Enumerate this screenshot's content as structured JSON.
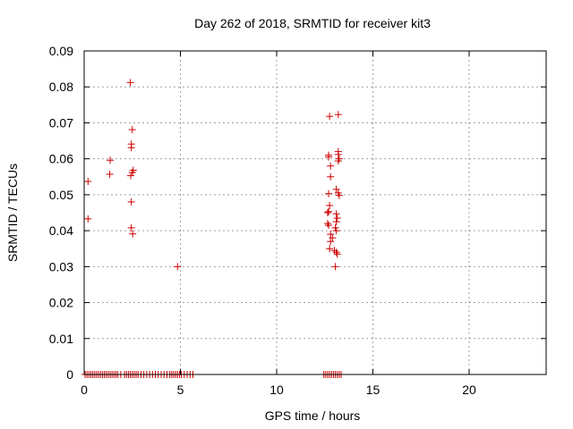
{
  "chart_data": {
    "type": "scatter",
    "title": "Day 262 of 2018, SRMTID for receiver kit3",
    "xlabel": "GPS time / hours",
    "ylabel": "SRMTID / TECUs",
    "xlim": [
      0,
      24
    ],
    "ylim": [
      0,
      0.09
    ],
    "x_ticks": [
      0,
      5,
      10,
      15,
      20
    ],
    "x_tick_labels": [
      "0",
      "5",
      "10",
      "15",
      "20"
    ],
    "y_ticks": [
      0,
      0.01,
      0.02,
      0.03,
      0.04,
      0.05,
      0.06,
      0.07,
      0.08,
      0.09
    ],
    "y_tick_labels": [
      "0",
      "0.01",
      "0.02",
      "0.03",
      "0.04",
      "0.05",
      "0.06",
      "0.07",
      "0.08",
      "0.09"
    ],
    "grid": true,
    "marker": "+",
    "marker_color": "#cc0000",
    "series": [
      {
        "points": [
          [
            0.2,
            0.0537
          ],
          [
            0.2,
            0.0433
          ],
          [
            1.35,
            0.0596
          ],
          [
            1.33,
            0.0557
          ],
          [
            2.4,
            0.0812
          ],
          [
            2.5,
            0.0681
          ],
          [
            2.45,
            0.0641
          ],
          [
            2.45,
            0.0631
          ],
          [
            2.55,
            0.0568
          ],
          [
            2.5,
            0.0562
          ],
          [
            2.42,
            0.0553
          ],
          [
            2.45,
            0.048
          ],
          [
            2.45,
            0.0408
          ],
          [
            2.52,
            0.0391
          ],
          [
            4.85,
            0.03
          ],
          [
            12.75,
            0.0718
          ],
          [
            13.2,
            0.0723
          ],
          [
            13.2,
            0.062
          ],
          [
            13.2,
            0.0612
          ],
          [
            12.7,
            0.061
          ],
          [
            12.7,
            0.0605
          ],
          [
            13.25,
            0.06
          ],
          [
            13.2,
            0.0594
          ],
          [
            12.8,
            0.058
          ],
          [
            12.8,
            0.055
          ],
          [
            13.1,
            0.0515
          ],
          [
            13.2,
            0.0505
          ],
          [
            12.7,
            0.0503
          ],
          [
            13.25,
            0.0498
          ],
          [
            12.75,
            0.047
          ],
          [
            12.7,
            0.0453
          ],
          [
            12.65,
            0.045
          ],
          [
            13.1,
            0.0447
          ],
          [
            13.15,
            0.0435
          ],
          [
            13.1,
            0.0425
          ],
          [
            12.65,
            0.042
          ],
          [
            12.7,
            0.0415
          ],
          [
            13.05,
            0.0408
          ],
          [
            13.1,
            0.04
          ],
          [
            12.8,
            0.039
          ],
          [
            12.9,
            0.038
          ],
          [
            12.8,
            0.037
          ],
          [
            12.75,
            0.035
          ],
          [
            13.0,
            0.0345
          ],
          [
            13.1,
            0.034
          ],
          [
            13.15,
            0.0335
          ],
          [
            13.05,
            0.03
          ]
        ],
        "zero_x": [
          0.05,
          0.15,
          0.25,
          0.35,
          0.45,
          0.55,
          0.65,
          0.75,
          0.85,
          0.95,
          1.05,
          1.15,
          1.25,
          1.35,
          1.45,
          1.55,
          1.65,
          1.75,
          1.9,
          2.1,
          2.2,
          2.3,
          2.4,
          2.5,
          2.6,
          2.7,
          2.8,
          2.95,
          3.1,
          3.25,
          3.4,
          3.55,
          3.7,
          3.85,
          4.0,
          4.15,
          4.3,
          4.45,
          4.55,
          4.65,
          4.75,
          4.85,
          4.95,
          5.05,
          5.2,
          5.35,
          5.5,
          5.65,
          12.45,
          12.55,
          12.65,
          12.75,
          12.85,
          12.95,
          13.05,
          13.15,
          13.25,
          13.35
        ]
      }
    ]
  }
}
